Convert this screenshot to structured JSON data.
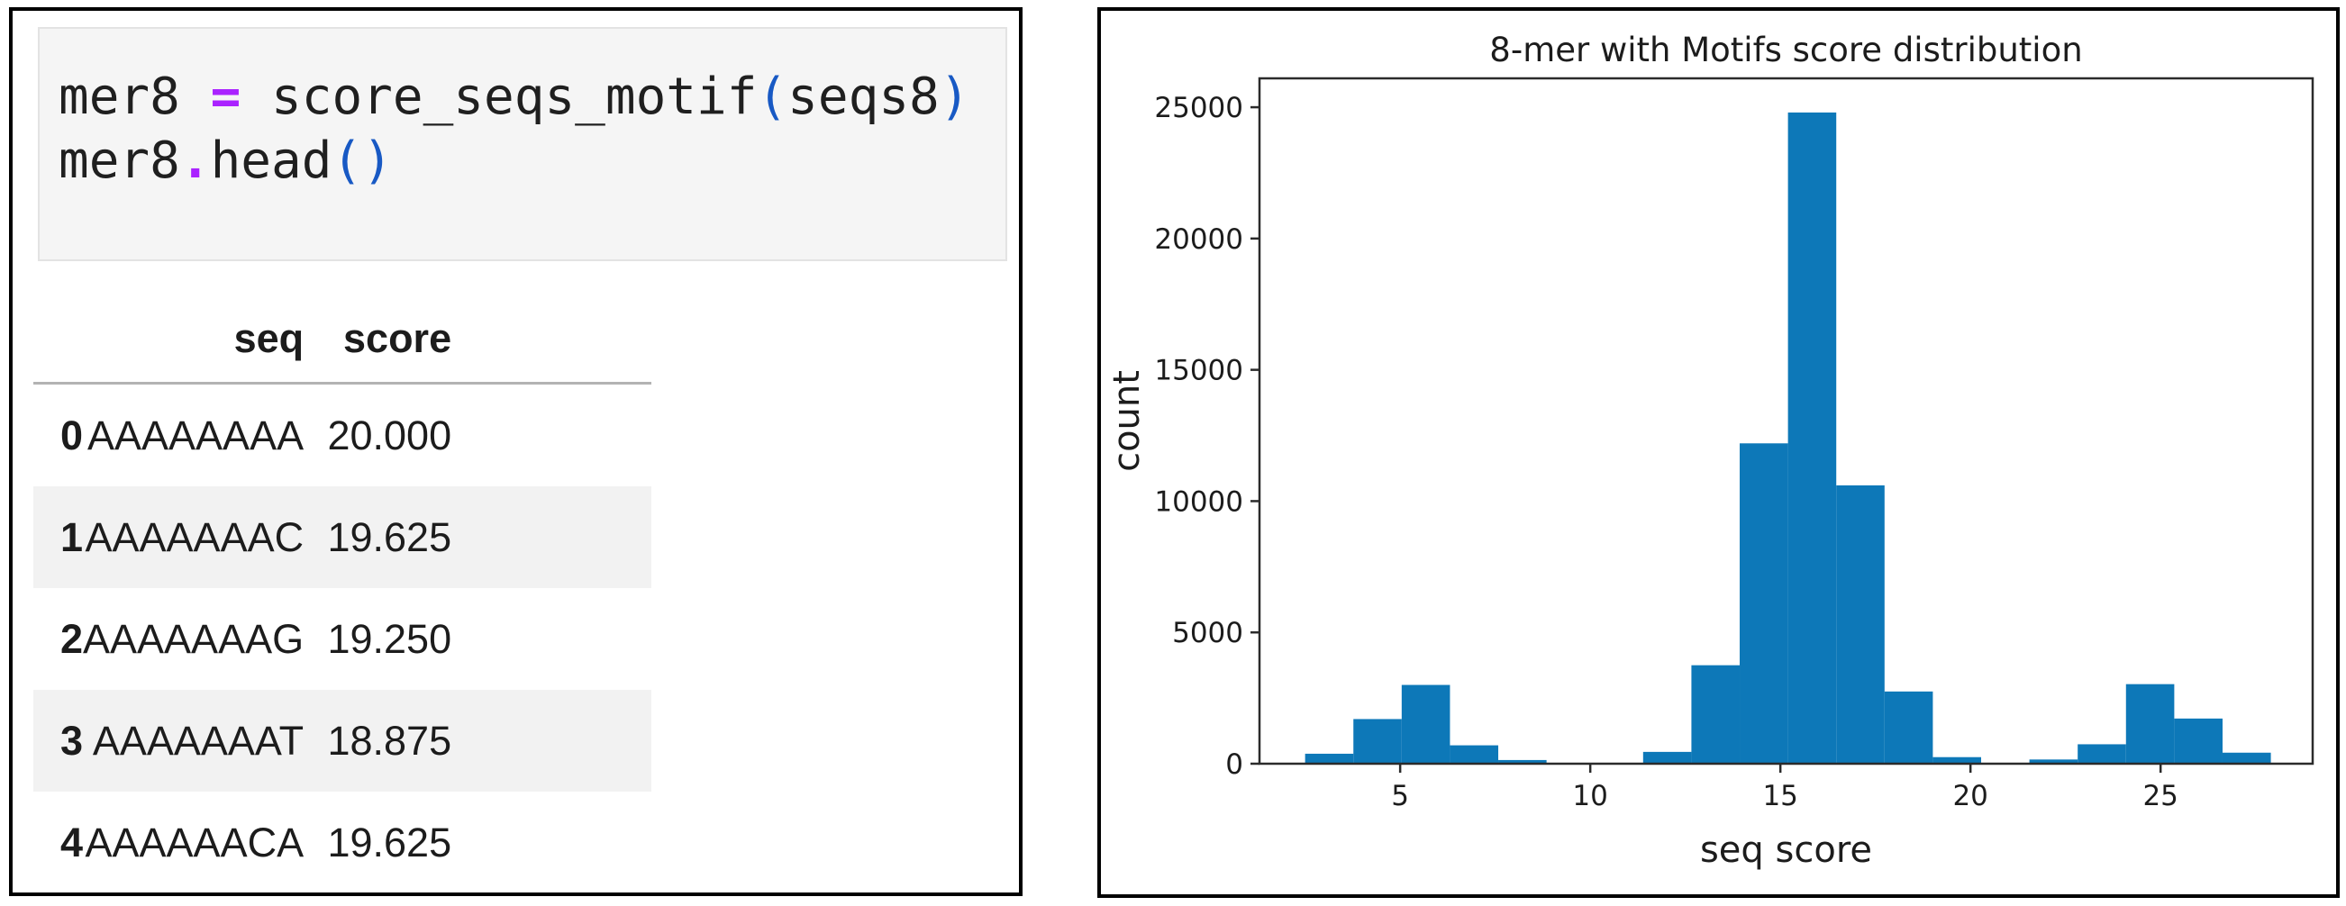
{
  "left_panel": {
    "code_cell": {
      "line1": {
        "t1": "mer8 ",
        "t2": "=",
        "t3": " score_seqs_motif",
        "t4": "(",
        "t5": "seqs8",
        "t6": ")"
      },
      "line2": {
        "t1": "mer8",
        "t2": ".",
        "t3": "head",
        "t4": "(",
        "t5": ")"
      }
    },
    "table": {
      "col_seq": "seq",
      "col_score": "score",
      "rows": [
        {
          "index": "0",
          "seq": "AAAAAAAA",
          "score": "20.000"
        },
        {
          "index": "1",
          "seq": "AAAAAAAC",
          "score": "19.625"
        },
        {
          "index": "2",
          "seq": "AAAAAAAG",
          "score": "19.250"
        },
        {
          "index": "3",
          "seq": "AAAAAAAT",
          "score": "18.875"
        },
        {
          "index": "4",
          "seq": "AAAAAACA",
          "score": "19.625"
        }
      ]
    }
  },
  "colors": {
    "operator": "#aa22ff",
    "paren": "#1859c4",
    "code_text": "#1f1f1f",
    "cell_background": "#f5f5f5",
    "row_shade": "#f2f2f2",
    "bar": "#0d78b8",
    "spine": "#2b2b2b"
  },
  "chart_data": {
    "type": "bar",
    "subtype": "histogram",
    "title": "8-mer with Motifs score distribution",
    "xlabel": "seq score",
    "ylabel": "count",
    "bar_color": "#0d78b8",
    "bin_start": 2.5,
    "bin_width": 1.27,
    "counts": [
      380,
      1700,
      3000,
      700,
      140,
      0,
      0,
      450,
      3750,
      12200,
      24800,
      10600,
      2750,
      250,
      0,
      160,
      740,
      3030,
      1720,
      420
    ],
    "x_ticks": [
      5,
      10,
      15,
      20,
      25
    ],
    "y_ticks": [
      0,
      5000,
      10000,
      15000,
      20000,
      25000
    ],
    "xlim": [
      1.3,
      29.0
    ],
    "ylim": [
      0,
      26100
    ],
    "grid": false,
    "legend": null
  }
}
